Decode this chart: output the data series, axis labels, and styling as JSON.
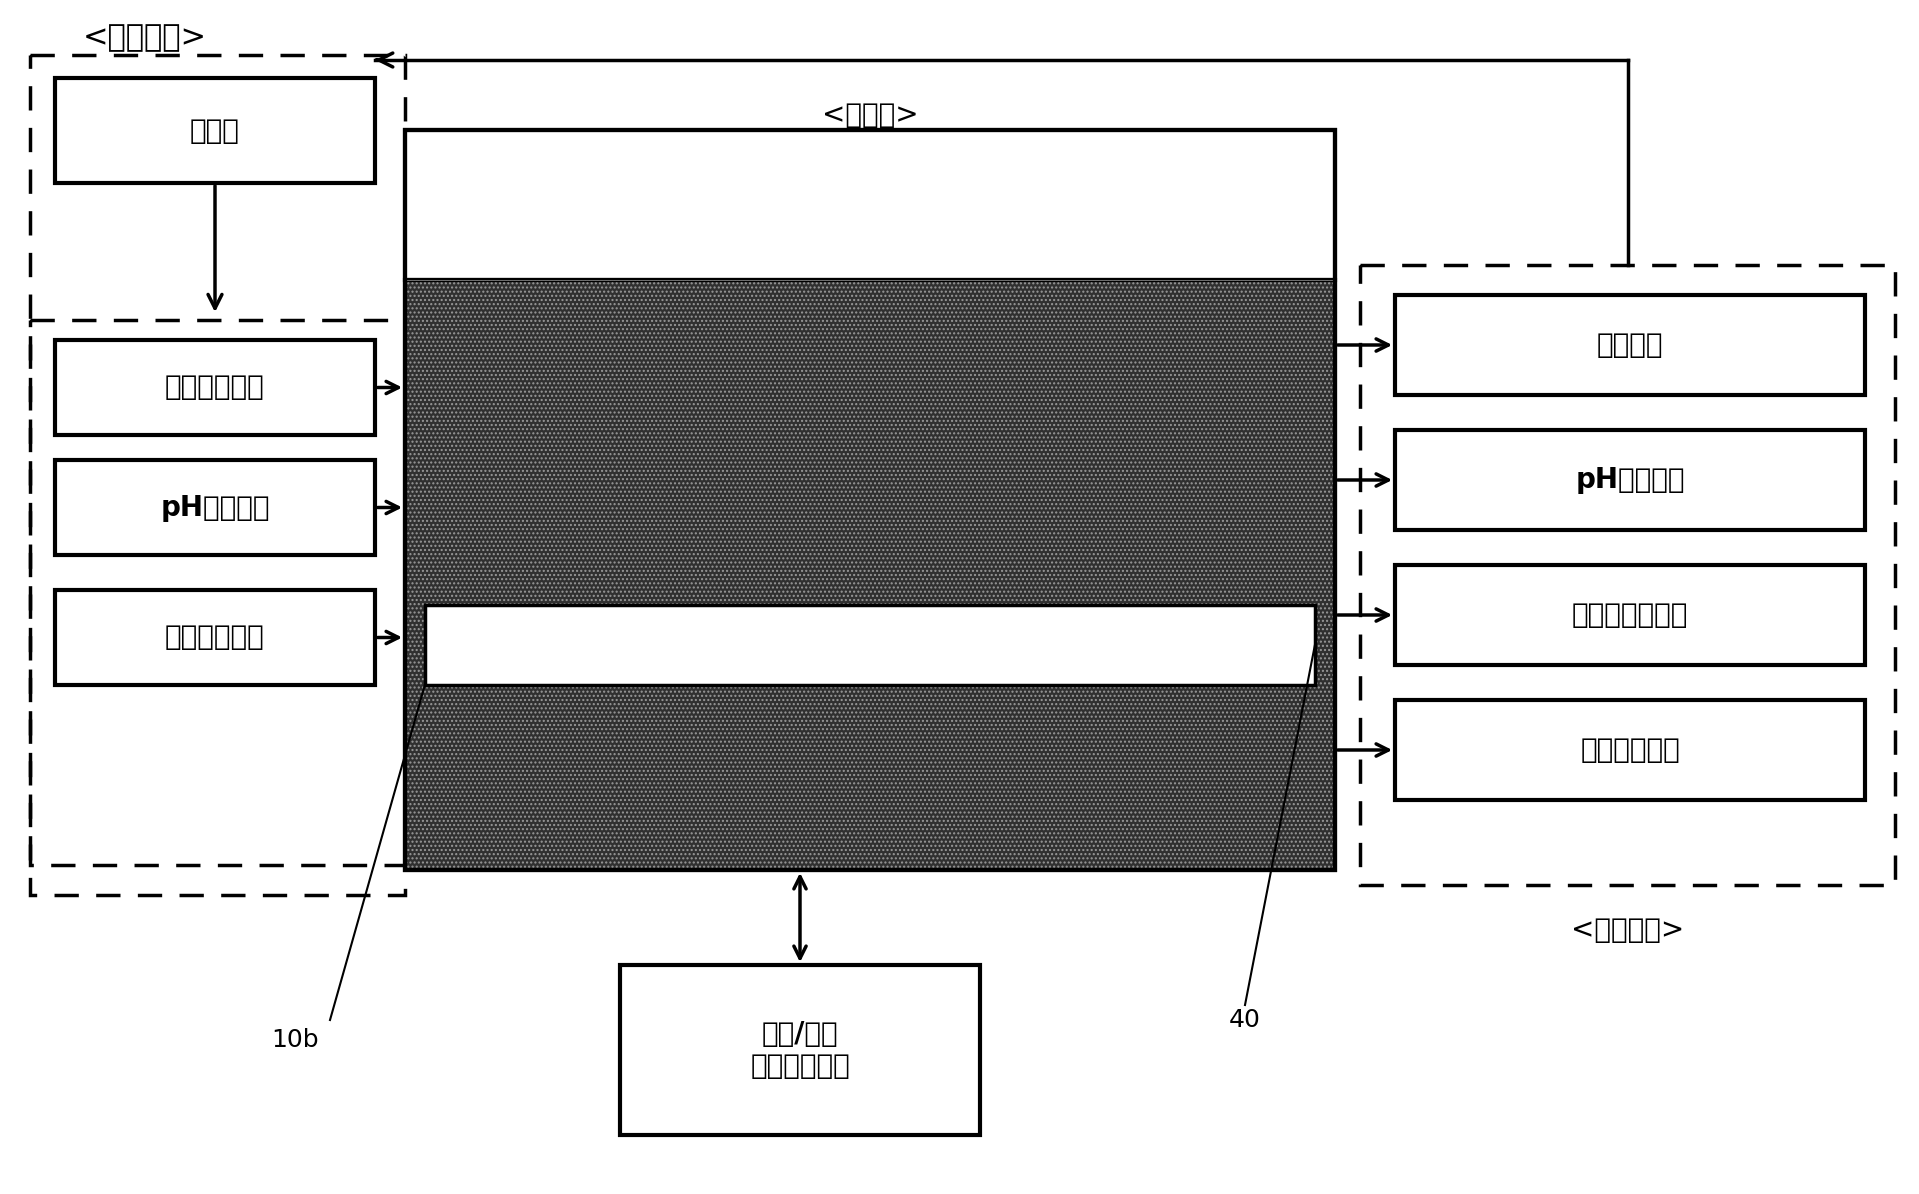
{
  "title_adjust": "<调节装置>",
  "title_monitor": "<监测装置>",
  "title_tank": "<贮藏槽>",
  "label_control": "控制部",
  "label_dye": "染料供给装置",
  "label_ph_adj": "pH调节装置",
  "label_solvent": "溶剂供给装置",
  "label_absorb": "吸光装置",
  "label_ph_meas": "pH测定装置",
  "label_conduct": "电导率测定装置",
  "label_turbid": "浊度测定装置",
  "label_temp": "温度/压力\n测定和控制部",
  "label_10b": "10b",
  "label_40": "40",
  "bg_color": "#ffffff",
  "tank_dark": "#303030",
  "tank_hatch_color": "#888888",
  "fs_bigtitle": 22,
  "fs_label": 20,
  "fs_small": 18,
  "lw_solid": 2.5,
  "lw_thick": 3.0,
  "lw_dash": 2.5
}
